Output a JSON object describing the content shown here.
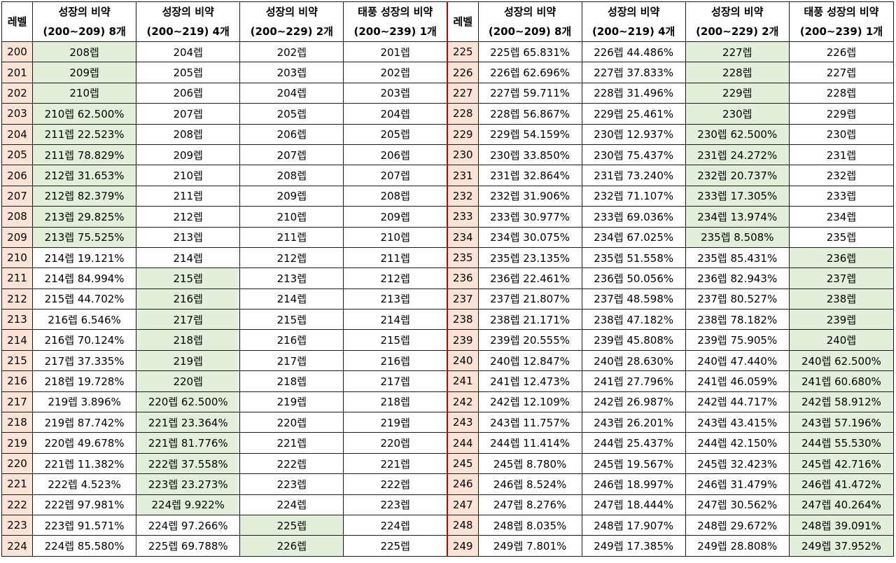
{
  "headers": {
    "level": "레벨",
    "cols": [
      [
        "성장의 비약",
        "(200~209) 8개"
      ],
      [
        "성장의 비약",
        "(200~219) 4개"
      ],
      [
        "성장의 비약",
        "(200~229) 2개"
      ],
      [
        "태풍 성장의 비약",
        "(200~239) 1개"
      ]
    ]
  },
  "colors": {
    "level_bg": "#fbe4d5",
    "highlight_bg": "#e2efda",
    "separator": "#c00000"
  },
  "left_rows": [
    {
      "level": "200",
      "cells": [
        "208렙",
        "204렙",
        "202렙",
        "201렙"
      ],
      "hl": [
        true,
        false,
        false,
        false
      ]
    },
    {
      "level": "201",
      "cells": [
        "209렙",
        "205렙",
        "203렙",
        "202렙"
      ],
      "hl": [
        true,
        false,
        false,
        false
      ]
    },
    {
      "level": "202",
      "cells": [
        "210렙",
        "206렙",
        "204렙",
        "203렙"
      ],
      "hl": [
        true,
        false,
        false,
        false
      ]
    },
    {
      "level": "203",
      "cells": [
        "210렙 62.500%",
        "207렙",
        "205렙",
        "204렙"
      ],
      "hl": [
        true,
        false,
        false,
        false
      ]
    },
    {
      "level": "204",
      "cells": [
        "211렙 22.523%",
        "208렙",
        "206렙",
        "205렙"
      ],
      "hl": [
        true,
        false,
        false,
        false
      ]
    },
    {
      "level": "205",
      "cells": [
        "211렙 78.829%",
        "209렙",
        "207렙",
        "206렙"
      ],
      "hl": [
        true,
        false,
        false,
        false
      ]
    },
    {
      "level": "206",
      "cells": [
        "212렙 31.653%",
        "210렙",
        "208렙",
        "207렙"
      ],
      "hl": [
        true,
        false,
        false,
        false
      ]
    },
    {
      "level": "207",
      "cells": [
        "212렙 82.379%",
        "211렙",
        "209렙",
        "208렙"
      ],
      "hl": [
        true,
        false,
        false,
        false
      ]
    },
    {
      "level": "208",
      "cells": [
        "213렙 29.825%",
        "212렙",
        "210렙",
        "209렙"
      ],
      "hl": [
        true,
        false,
        false,
        false
      ]
    },
    {
      "level": "209",
      "cells": [
        "213렙 75.525%",
        "213렙",
        "211렙",
        "210렙"
      ],
      "hl": [
        true,
        false,
        false,
        false
      ]
    },
    {
      "level": "210",
      "cells": [
        "214렙 19.121%",
        "214렙",
        "212렙",
        "211렙"
      ],
      "hl": [
        false,
        false,
        false,
        false
      ]
    },
    {
      "level": "211",
      "cells": [
        "214렙 84.994%",
        "215렙",
        "213렙",
        "212렙"
      ],
      "hl": [
        false,
        true,
        false,
        false
      ]
    },
    {
      "level": "212",
      "cells": [
        "215렙 44.702%",
        "216렙",
        "214렙",
        "213렙"
      ],
      "hl": [
        false,
        true,
        false,
        false
      ]
    },
    {
      "level": "213",
      "cells": [
        "216렙 6.546%",
        "217렙",
        "215렙",
        "214렙"
      ],
      "hl": [
        false,
        true,
        false,
        false
      ]
    },
    {
      "level": "214",
      "cells": [
        "216렙 70.124%",
        "218렙",
        "216렙",
        "215렙"
      ],
      "hl": [
        false,
        true,
        false,
        false
      ]
    },
    {
      "level": "215",
      "cells": [
        "217렙 37.335%",
        "219렙",
        "217렙",
        "216렙"
      ],
      "hl": [
        false,
        true,
        false,
        false
      ]
    },
    {
      "level": "216",
      "cells": [
        "218렙 19.728%",
        "220렙",
        "218렙",
        "217렙"
      ],
      "hl": [
        false,
        true,
        false,
        false
      ]
    },
    {
      "level": "217",
      "cells": [
        "219렙 3.896%",
        "220렙 62.500%",
        "219렙",
        "218렙"
      ],
      "hl": [
        false,
        true,
        false,
        false
      ]
    },
    {
      "level": "218",
      "cells": [
        "219렙 87.742%",
        "221렙 23.364%",
        "220렙",
        "219렙"
      ],
      "hl": [
        false,
        true,
        false,
        false
      ]
    },
    {
      "level": "219",
      "cells": [
        "220렙 49.678%",
        "221렙 81.776%",
        "221렙",
        "220렙"
      ],
      "hl": [
        false,
        true,
        false,
        false
      ]
    },
    {
      "level": "220",
      "cells": [
        "221렙 11.382%",
        "222렙 37.558%",
        "222렙",
        "221렙"
      ],
      "hl": [
        false,
        true,
        false,
        false
      ]
    },
    {
      "level": "221",
      "cells": [
        "222렙 4.523%",
        "223렙 23.273%",
        "223렙",
        "222렙"
      ],
      "hl": [
        false,
        true,
        false,
        false
      ]
    },
    {
      "level": "222",
      "cells": [
        "222렙 97.981%",
        "224렙 9.922%",
        "224렙",
        "223렙"
      ],
      "hl": [
        false,
        true,
        false,
        false
      ]
    },
    {
      "level": "223",
      "cells": [
        "223렙 91.571%",
        "224렙 97.266%",
        "225렙",
        "224렙"
      ],
      "hl": [
        false,
        false,
        true,
        false
      ]
    },
    {
      "level": "224",
      "cells": [
        "224렙 85.580%",
        "225렙 69.788%",
        "226렙",
        "225렙"
      ],
      "hl": [
        false,
        false,
        true,
        false
      ]
    }
  ],
  "right_rows": [
    {
      "level": "225",
      "cells": [
        "225렙 65.831%",
        "226렙 44.486%",
        "227렙",
        "226렙"
      ],
      "hl": [
        false,
        false,
        true,
        false
      ]
    },
    {
      "level": "226",
      "cells": [
        "226렙 62.696%",
        "227렙 37.833%",
        "228렙",
        "227렙"
      ],
      "hl": [
        false,
        false,
        true,
        false
      ]
    },
    {
      "level": "227",
      "cells": [
        "227렙 59.711%",
        "228렙 31.496%",
        "229렙",
        "228렙"
      ],
      "hl": [
        false,
        false,
        true,
        false
      ]
    },
    {
      "level": "228",
      "cells": [
        "228렙 56.867%",
        "229렙 25.461%",
        "230렙",
        "229렙"
      ],
      "hl": [
        false,
        false,
        true,
        false
      ]
    },
    {
      "level": "229",
      "cells": [
        "229렙 54.159%",
        "230렙 12.937%",
        "230렙 62.500%",
        "230렙"
      ],
      "hl": [
        false,
        false,
        true,
        false
      ]
    },
    {
      "level": "230",
      "cells": [
        "230렙 33.850%",
        "230렙 75.437%",
        "231렙 24.272%",
        "231렙"
      ],
      "hl": [
        false,
        false,
        true,
        false
      ]
    },
    {
      "level": "231",
      "cells": [
        "231렙 32.864%",
        "231렙 73.240%",
        "232렙 20.737%",
        "232렙"
      ],
      "hl": [
        false,
        false,
        true,
        false
      ]
    },
    {
      "level": "232",
      "cells": [
        "232렙 31.906%",
        "232렙 71.107%",
        "233렙 17.305%",
        "233렙"
      ],
      "hl": [
        false,
        false,
        true,
        false
      ]
    },
    {
      "level": "233",
      "cells": [
        "233렙 30.977%",
        "233렙 69.036%",
        "234렙 13.974%",
        "234렙"
      ],
      "hl": [
        false,
        false,
        true,
        false
      ]
    },
    {
      "level": "234",
      "cells": [
        "234렙 30.075%",
        "234렙 67.025%",
        "235렙 8.508%",
        "235렙"
      ],
      "hl": [
        false,
        false,
        true,
        false
      ]
    },
    {
      "level": "235",
      "cells": [
        "235렙 23.135%",
        "235렙 51.558%",
        "235렙 85.431%",
        "236렙"
      ],
      "hl": [
        false,
        false,
        false,
        true
      ]
    },
    {
      "level": "236",
      "cells": [
        "236렙 22.461%",
        "236렙 50.056%",
        "236렙 82.943%",
        "237렙"
      ],
      "hl": [
        false,
        false,
        false,
        true
      ]
    },
    {
      "level": "237",
      "cells": [
        "237렙 21.807%",
        "237렙 48.598%",
        "237렙 80.527%",
        "238렙"
      ],
      "hl": [
        false,
        false,
        false,
        true
      ]
    },
    {
      "level": "238",
      "cells": [
        "238렙 21.171%",
        "238렙 47.182%",
        "238렙 78.182%",
        "239렙"
      ],
      "hl": [
        false,
        false,
        false,
        true
      ]
    },
    {
      "level": "239",
      "cells": [
        "239렙 20.555%",
        "239렙 45.808%",
        "239렙 75.905%",
        "240렙"
      ],
      "hl": [
        false,
        false,
        false,
        true
      ]
    },
    {
      "level": "240",
      "cells": [
        "240렙 12.847%",
        "240렙 28.630%",
        "240렙 47.440%",
        "240렙 62.500%"
      ],
      "hl": [
        false,
        false,
        false,
        true
      ]
    },
    {
      "level": "241",
      "cells": [
        "241렙 12.473%",
        "241렙 27.796%",
        "241렙 46.059%",
        "241렙 60.680%"
      ],
      "hl": [
        false,
        false,
        false,
        true
      ]
    },
    {
      "level": "242",
      "cells": [
        "242렙 12.109%",
        "242렙 26.987%",
        "242렙 44.717%",
        "242렙 58.912%"
      ],
      "hl": [
        false,
        false,
        false,
        true
      ]
    },
    {
      "level": "243",
      "cells": [
        "243렙 11.757%",
        "243렙 26.201%",
        "243렙 43.415%",
        "243렙 57.196%"
      ],
      "hl": [
        false,
        false,
        false,
        true
      ]
    },
    {
      "level": "244",
      "cells": [
        "244렙 11.414%",
        "244렙 25.437%",
        "244렙 42.150%",
        "244렙 55.530%"
      ],
      "hl": [
        false,
        false,
        false,
        true
      ]
    },
    {
      "level": "245",
      "cells": [
        "245렙 8.780%",
        "245렙 19.567%",
        "245렙 32.423%",
        "245렙 42.716%"
      ],
      "hl": [
        false,
        false,
        false,
        true
      ]
    },
    {
      "level": "246",
      "cells": [
        "246렙 8.524%",
        "246렙 18.997%",
        "246렙 31.479%",
        "246렙 41.472%"
      ],
      "hl": [
        false,
        false,
        false,
        true
      ]
    },
    {
      "level": "247",
      "cells": [
        "247렙 8.276%",
        "247렙 18.444%",
        "247렙 30.562%",
        "247렙 40.264%"
      ],
      "hl": [
        false,
        false,
        false,
        true
      ]
    },
    {
      "level": "248",
      "cells": [
        "248렙 8.035%",
        "248렙 17.907%",
        "248렙 29.672%",
        "248렙 39.091%"
      ],
      "hl": [
        false,
        false,
        false,
        true
      ]
    },
    {
      "level": "249",
      "cells": [
        "249렙 7.801%",
        "249렙 17.385%",
        "249렙 28.808%",
        "249렙 37.952%"
      ],
      "hl": [
        false,
        false,
        false,
        true
      ]
    }
  ]
}
